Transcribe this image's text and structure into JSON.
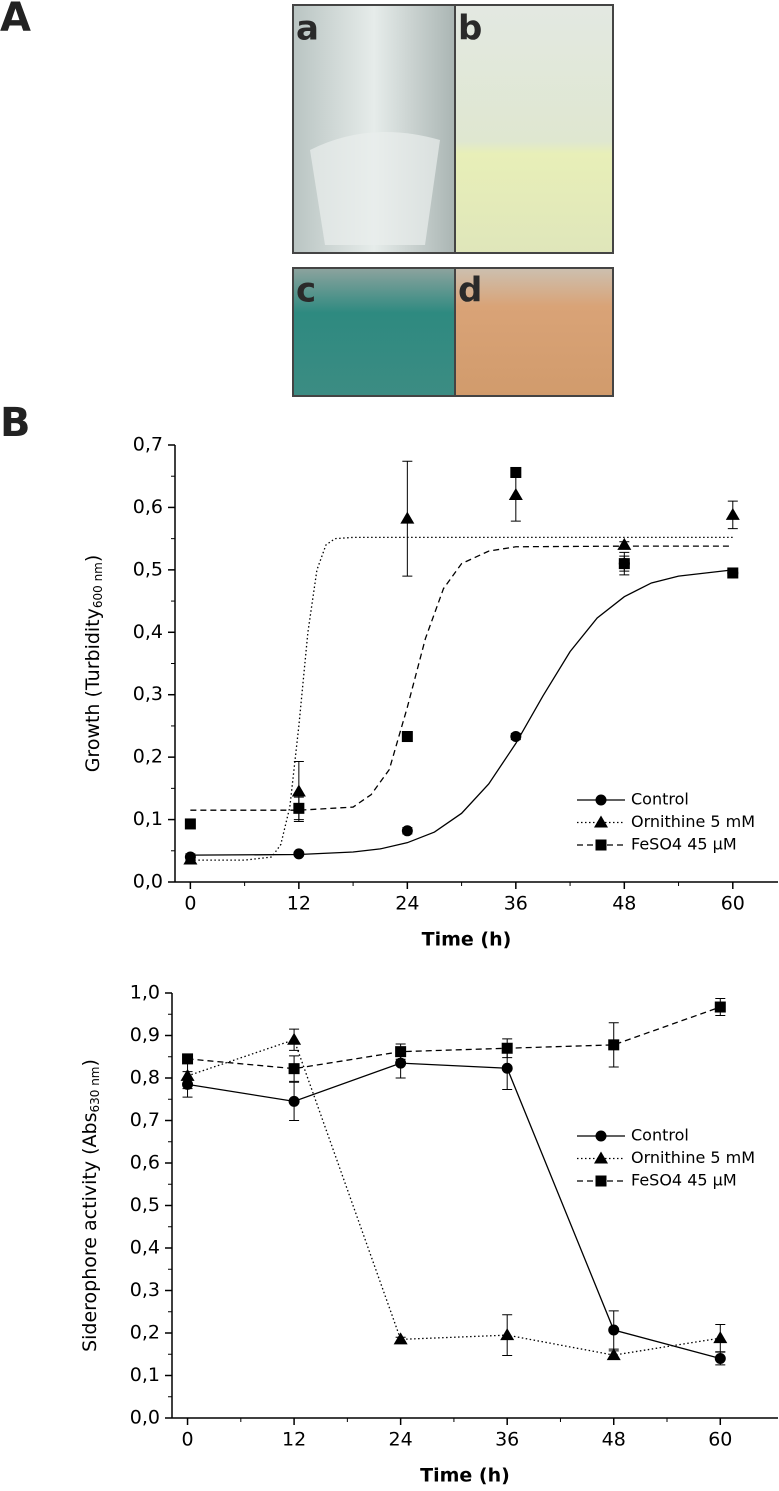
{
  "figure_labels": [
    "A",
    "B"
  ],
  "photo_labels": [
    "a",
    "b",
    "c",
    "d"
  ],
  "chart_data": [
    {
      "type": "line",
      "x": [
        0,
        12,
        24,
        36,
        48,
        60
      ],
      "xlim": [
        -1.7,
        65
      ],
      "xticks": [
        0,
        12,
        24,
        36,
        48,
        60
      ],
      "ylim": [
        0,
        0.7
      ],
      "yticks": [
        {
          "value": 0,
          "label": "0,0"
        },
        {
          "value": 0.1,
          "label": "0,1"
        },
        {
          "value": 0.2,
          "label": "0,2"
        },
        {
          "value": 0.3,
          "label": "0,3"
        },
        {
          "value": 0.4,
          "label": "0,4"
        },
        {
          "value": 0.5,
          "label": "0,5"
        },
        {
          "value": 0.6,
          "label": "0,6"
        },
        {
          "value": 0.7,
          "label": "0,7"
        }
      ],
      "xlabel": "Time (h)",
      "ylabel": {
        "text": "Growth (Turbidity",
        "sub": "600 nm",
        "end": ")"
      },
      "series": [
        {
          "name": "Control",
          "color": "#000000",
          "marker": "circle",
          "dash": "solid",
          "values": [
            0.04,
            0.045,
            0.082,
            0.233,
            0.51,
            0.495
          ],
          "errors": [
            0.005,
            0.003,
            0.005,
            0.005,
            0.012,
            0.005
          ],
          "fit_x": [
            0,
            12,
            18,
            21,
            24,
            27,
            30,
            33,
            36,
            39,
            42,
            45,
            48,
            51,
            54,
            57,
            60
          ],
          "fit": [
            0.043,
            0.044,
            0.048,
            0.053,
            0.063,
            0.08,
            0.11,
            0.157,
            0.222,
            0.298,
            0.369,
            0.423,
            0.457,
            0.479,
            0.49,
            0.495,
            0.5
          ]
        },
        {
          "name": "Ornithine 5 mM",
          "color": "#000000",
          "marker": "triangle",
          "dash": "dotted",
          "values": [
            0.036,
            0.145,
            0.582,
            0.62,
            0.54,
            0.588
          ],
          "errors": [
            0.005,
            0.048,
            0.092,
            0.042,
            0.005,
            0.022
          ],
          "fit_x": [
            0,
            6,
            9,
            10,
            11,
            12,
            13,
            14,
            15,
            16,
            18,
            24,
            36,
            48,
            60
          ],
          "fit": [
            0.035,
            0.035,
            0.04,
            0.06,
            0.12,
            0.25,
            0.4,
            0.5,
            0.54,
            0.55,
            0.552,
            0.552,
            0.552,
            0.552,
            0.552
          ]
        },
        {
          "name": "FeSO4 45 μM",
          "color": "#000000",
          "marker": "square",
          "dash": "dashed",
          "values": [
            0.093,
            0.118,
            0.233,
            0.656,
            0.51,
            0.495
          ],
          "errors": [
            0.003,
            0.018,
            0.008,
            0.008,
            0.018,
            0.005
          ],
          "fit_x": [
            0,
            12,
            18,
            20,
            22,
            24,
            26,
            28,
            30,
            33,
            36,
            48,
            60
          ],
          "fit": [
            0.115,
            0.115,
            0.12,
            0.14,
            0.18,
            0.28,
            0.39,
            0.47,
            0.51,
            0.53,
            0.537,
            0.538,
            0.538
          ]
        }
      ]
    },
    {
      "type": "line",
      "x": [
        0,
        12,
        24,
        36,
        48,
        60
      ],
      "xlim": [
        -1.75,
        66.5
      ],
      "xticks": [
        0,
        12,
        24,
        36,
        48,
        60
      ],
      "ylim": [
        0,
        1.0
      ],
      "yticks": [
        {
          "value": 0,
          "label": "0,0"
        },
        {
          "value": 0.1,
          "label": "0,1"
        },
        {
          "value": 0.2,
          "label": "0,2"
        },
        {
          "value": 0.3,
          "label": "0,3"
        },
        {
          "value": 0.4,
          "label": "0,4"
        },
        {
          "value": 0.5,
          "label": "0,5"
        },
        {
          "value": 0.6,
          "label": "0,6"
        },
        {
          "value": 0.7,
          "label": "0,7"
        },
        {
          "value": 0.8,
          "label": "0,8"
        },
        {
          "value": 0.9,
          "label": "0,9"
        },
        {
          "value": 1.0,
          "label": "1,0"
        }
      ],
      "xlabel": "Time (h)",
      "ylabel": {
        "text": "Siderophore activity (Abs",
        "sub": "630 nm",
        "end": ")"
      },
      "series": [
        {
          "name": "Control",
          "color": "#000000",
          "marker": "circle",
          "dash": "solid",
          "values": [
            0.785,
            0.745,
            0.835,
            0.823,
            0.207,
            0.14
          ],
          "errors": [
            0.03,
            0.045,
            0.035,
            0.05,
            0.045,
            0.015
          ]
        },
        {
          "name": "Ornithine 5 mM",
          "color": "#000000",
          "marker": "triangle",
          "dash": "dotted",
          "values": [
            0.805,
            0.89,
            0.185,
            0.195,
            0.148,
            0.188
          ],
          "errors": [
            0.03,
            0.025,
            0.005,
            0.048,
            0.01,
            0.032
          ]
        },
        {
          "name": "FeSO4 45 μM",
          "color": "#000000",
          "marker": "square",
          "dash": "dashed",
          "values": [
            0.845,
            0.822,
            0.862,
            0.87,
            0.878,
            0.967
          ],
          "errors": [
            0.01,
            0.03,
            0.018,
            0.022,
            0.052,
            0.02
          ]
        }
      ]
    }
  ]
}
